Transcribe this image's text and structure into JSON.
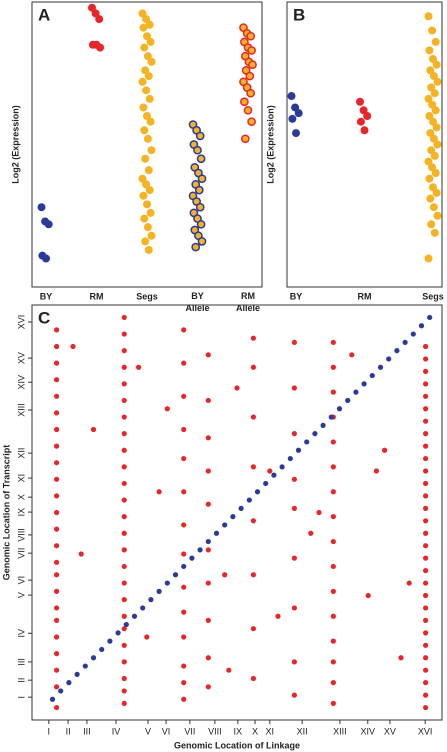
{
  "chart_data": [
    {
      "type": "strip",
      "panel_label": "A",
      "ylabel": "Log2 (Expression)",
      "categories": [
        "BY",
        "RM",
        "Segs",
        "BY Allele",
        "RM Allele"
      ],
      "colors": [
        "#2b3a9a",
        "#e8262a",
        "#f5b324",
        "#f5b324",
        "#f5b324"
      ],
      "edgecolors": [
        "#2b3a9a",
        "#e8262a",
        "#f5b324",
        "#2b3a9a",
        "#e8262a"
      ],
      "ylim": [
        0,
        10
      ],
      "values": [
        [
          2.8,
          2.3,
          2.2,
          1.1,
          1.0
        ],
        [
          9.8,
          9.6,
          9.4,
          8.5,
          8.5,
          8.4
        ],
        [
          9.6,
          9.4,
          9.2,
          9.1,
          8.8,
          8.6,
          8.4,
          8.1,
          7.9,
          7.6,
          7.4,
          7.2,
          6.9,
          6.6,
          6.3,
          6.0,
          5.8,
          5.5,
          5.2,
          4.8,
          4.5,
          4.1,
          3.8,
          3.6,
          3.4,
          3.2,
          2.9,
          2.6,
          2.4,
          2.1,
          1.8,
          1.6,
          1.3
        ],
        [
          5.7,
          5.5,
          5.3,
          5.0,
          4.8,
          4.5,
          4.2,
          4.0,
          3.8,
          3.6,
          3.4,
          3.2,
          3.0,
          2.8,
          2.6,
          2.4,
          2.2,
          2.0,
          1.8,
          1.6,
          1.4
        ],
        [
          9.1,
          8.9,
          8.8,
          8.6,
          8.4,
          8.3,
          8.1,
          7.9,
          7.8,
          7.6,
          7.4,
          7.2,
          7.0,
          6.8,
          6.5,
          6.2,
          5.8,
          5.2
        ]
      ]
    },
    {
      "type": "strip",
      "panel_label": "B",
      "ylabel": "Log2 (Expression)",
      "categories": [
        "BY",
        "RM",
        "Segs"
      ],
      "colors": [
        "#2b3a9a",
        "#e8262a",
        "#f5b324"
      ],
      "edgecolors": [
        "#2b3a9a",
        "#e8262a",
        "#f5b324"
      ],
      "ylim": [
        0,
        10
      ],
      "values": [
        [
          6.7,
          6.3,
          6.1,
          5.9,
          5.4
        ],
        [
          6.5,
          6.2,
          6.0,
          5.8,
          5.5
        ],
        [
          9.5,
          9.0,
          8.6,
          8.3,
          8.0,
          7.8,
          7.6,
          7.4,
          7.2,
          7.0,
          6.8,
          6.6,
          6.4,
          6.2,
          6.0,
          5.8,
          5.6,
          5.4,
          5.2,
          5.0,
          4.8,
          4.6,
          4.4,
          4.2,
          4.0,
          3.8,
          3.5,
          3.3,
          3.1,
          2.8,
          2.5,
          2.2,
          1.9,
          1.0
        ]
      ]
    },
    {
      "type": "scatter",
      "panel_label": "C",
      "xlabel": "Genomic Location of Linkage",
      "ylabel": "Genomic Location of Transcript",
      "xlim": [
        0,
        100
      ],
      "ylim": [
        0,
        100
      ],
      "xticks": [
        {
          "value": 4.1,
          "label": "I"
        },
        {
          "value": 8.8,
          "label": "II"
        },
        {
          "value": 13.4,
          "label": "III"
        },
        {
          "value": 20.5,
          "label": "IV"
        },
        {
          "value": 28.3,
          "label": "V"
        },
        {
          "value": 32.7,
          "label": "VI"
        },
        {
          "value": 38.5,
          "label": "VII"
        },
        {
          "value": 44.6,
          "label": "VIII"
        },
        {
          "value": 50.2,
          "label": "IX"
        },
        {
          "value": 54.4,
          "label": "X"
        },
        {
          "value": 58.0,
          "label": "XI"
        },
        {
          "value": 65.9,
          "label": "XII"
        },
        {
          "value": 75.1,
          "label": "XIII"
        },
        {
          "value": 81.9,
          "label": "XIV"
        },
        {
          "value": 87.3,
          "label": "XV"
        },
        {
          "value": 95.9,
          "label": "XVI"
        }
      ],
      "yticks": [
        {
          "value": 5.5,
          "label": "I"
        },
        {
          "value": 9.6,
          "label": "II"
        },
        {
          "value": 14.0,
          "label": "III"
        },
        {
          "value": 20.9,
          "label": "IV"
        },
        {
          "value": 30.1,
          "label": "V"
        },
        {
          "value": 33.7,
          "label": "VI"
        },
        {
          "value": 40.2,
          "label": "VII"
        },
        {
          "value": 44.6,
          "label": "VIII"
        },
        {
          "value": 50.1,
          "label": "IX"
        },
        {
          "value": 53.7,
          "label": "X"
        },
        {
          "value": 58.3,
          "label": "XI"
        },
        {
          "value": 64.3,
          "label": "XII"
        },
        {
          "value": 74.7,
          "label": "XIII"
        },
        {
          "value": 81.4,
          "label": "XIV"
        },
        {
          "value": 87.2,
          "label": "XV"
        },
        {
          "value": 95.9,
          "label": "XVI"
        }
      ],
      "series": [
        {
          "color": "#e8262a",
          "x": [
            6,
            6,
            6,
            6,
            6,
            6,
            6,
            6,
            6,
            6,
            6,
            6,
            6,
            6,
            6,
            6,
            6,
            6,
            6,
            6,
            6,
            6,
            6,
            6,
            22.5,
            22.5,
            22.5,
            22.5,
            22.5,
            22.5,
            22.5,
            22.5,
            22.5,
            22.5,
            22.5,
            22.5,
            22.5,
            22.5,
            22.5,
            22.5,
            22.5,
            22.5,
            22.5,
            22.5,
            22.5,
            22.5,
            22.5,
            22.5,
            22.5,
            37,
            37,
            37,
            37,
            37,
            37,
            37,
            37,
            37,
            37,
            37,
            37,
            37,
            37,
            43,
            43,
            43,
            43,
            43,
            43,
            43,
            43,
            43,
            43,
            54,
            54,
            54,
            54,
            54,
            54,
            54,
            54,
            64,
            64,
            64,
            64,
            64,
            64,
            64,
            64,
            64,
            73.5,
            73.5,
            73.5,
            73.5,
            73.5,
            73.5,
            73.5,
            73.5,
            73.5,
            73.5,
            73.5,
            73.5,
            73.5,
            73.5,
            73.5,
            73.5,
            96,
            96,
            96,
            96,
            96,
            96,
            96,
            96,
            96,
            96,
            96,
            96,
            96,
            96,
            96,
            96,
            96,
            96,
            96,
            96,
            96,
            96,
            96,
            96,
            96,
            96,
            96,
            96,
            96,
            96,
            10,
            15,
            28,
            31,
            47,
            50,
            58,
            60,
            68,
            78,
            82,
            86,
            90,
            12,
            26,
            33,
            48,
            70,
            84,
            92
          ],
          "values": [
            3,
            8,
            12,
            16,
            20,
            24,
            27,
            31,
            35,
            38,
            42,
            46,
            50,
            54,
            58,
            62,
            66,
            70,
            74,
            78,
            82,
            86,
            90,
            94,
            4,
            7,
            10,
            14,
            18,
            22,
            25,
            29,
            33,
            37,
            41,
            45,
            49,
            53,
            57,
            61,
            65,
            69,
            73,
            77,
            81,
            85,
            89,
            93,
            97,
            5,
            9,
            13,
            20,
            26,
            32,
            40,
            47,
            55,
            63,
            70,
            78,
            86,
            94,
            8,
            15,
            24,
            33,
            41,
            52,
            60,
            68,
            77,
            88,
            10,
            22,
            35,
            48,
            61,
            73,
            85,
            92,
            6,
            14,
            27,
            39,
            51,
            58,
            69,
            80,
            91,
            4,
            9,
            14,
            19,
            25,
            31,
            37,
            43,
            49,
            55,
            61,
            67,
            73,
            79,
            85,
            91,
            3,
            6,
            9,
            12,
            15,
            18,
            21,
            24,
            27,
            30,
            33,
            36,
            39,
            42,
            45,
            48,
            51,
            54,
            57,
            60,
            63,
            66,
            69,
            72,
            75,
            78,
            81,
            84,
            87,
            90,
            90,
            70,
            20,
            55,
            35,
            80,
            60,
            25,
            45,
            88,
            30,
            65,
            15,
            40,
            85,
            75,
            12,
            50,
            60,
            33
          ]
        },
        {
          "color": "#2b3a9a",
          "x": [
            5,
            7,
            9,
            11,
            13,
            15,
            17,
            19,
            21,
            23,
            25,
            27,
            29,
            31,
            33,
            35,
            37,
            39,
            41,
            43,
            45,
            47,
            49,
            51,
            53,
            55,
            57,
            59,
            61,
            63,
            65,
            67,
            69,
            71,
            73,
            75,
            77,
            79,
            81,
            83,
            85,
            87,
            89,
            91,
            93,
            95,
            97
          ],
          "values": [
            5,
            7,
            9,
            11,
            13,
            15,
            17,
            19,
            21,
            23,
            25,
            27,
            29,
            31,
            33,
            35,
            37,
            39,
            41,
            43,
            45,
            47,
            49,
            51,
            53,
            55,
            57,
            59,
            61,
            63,
            65,
            67,
            69,
            71,
            73,
            75,
            77,
            79,
            81,
            83,
            85,
            87,
            89,
            91,
            93,
            95,
            97
          ]
        }
      ]
    }
  ]
}
